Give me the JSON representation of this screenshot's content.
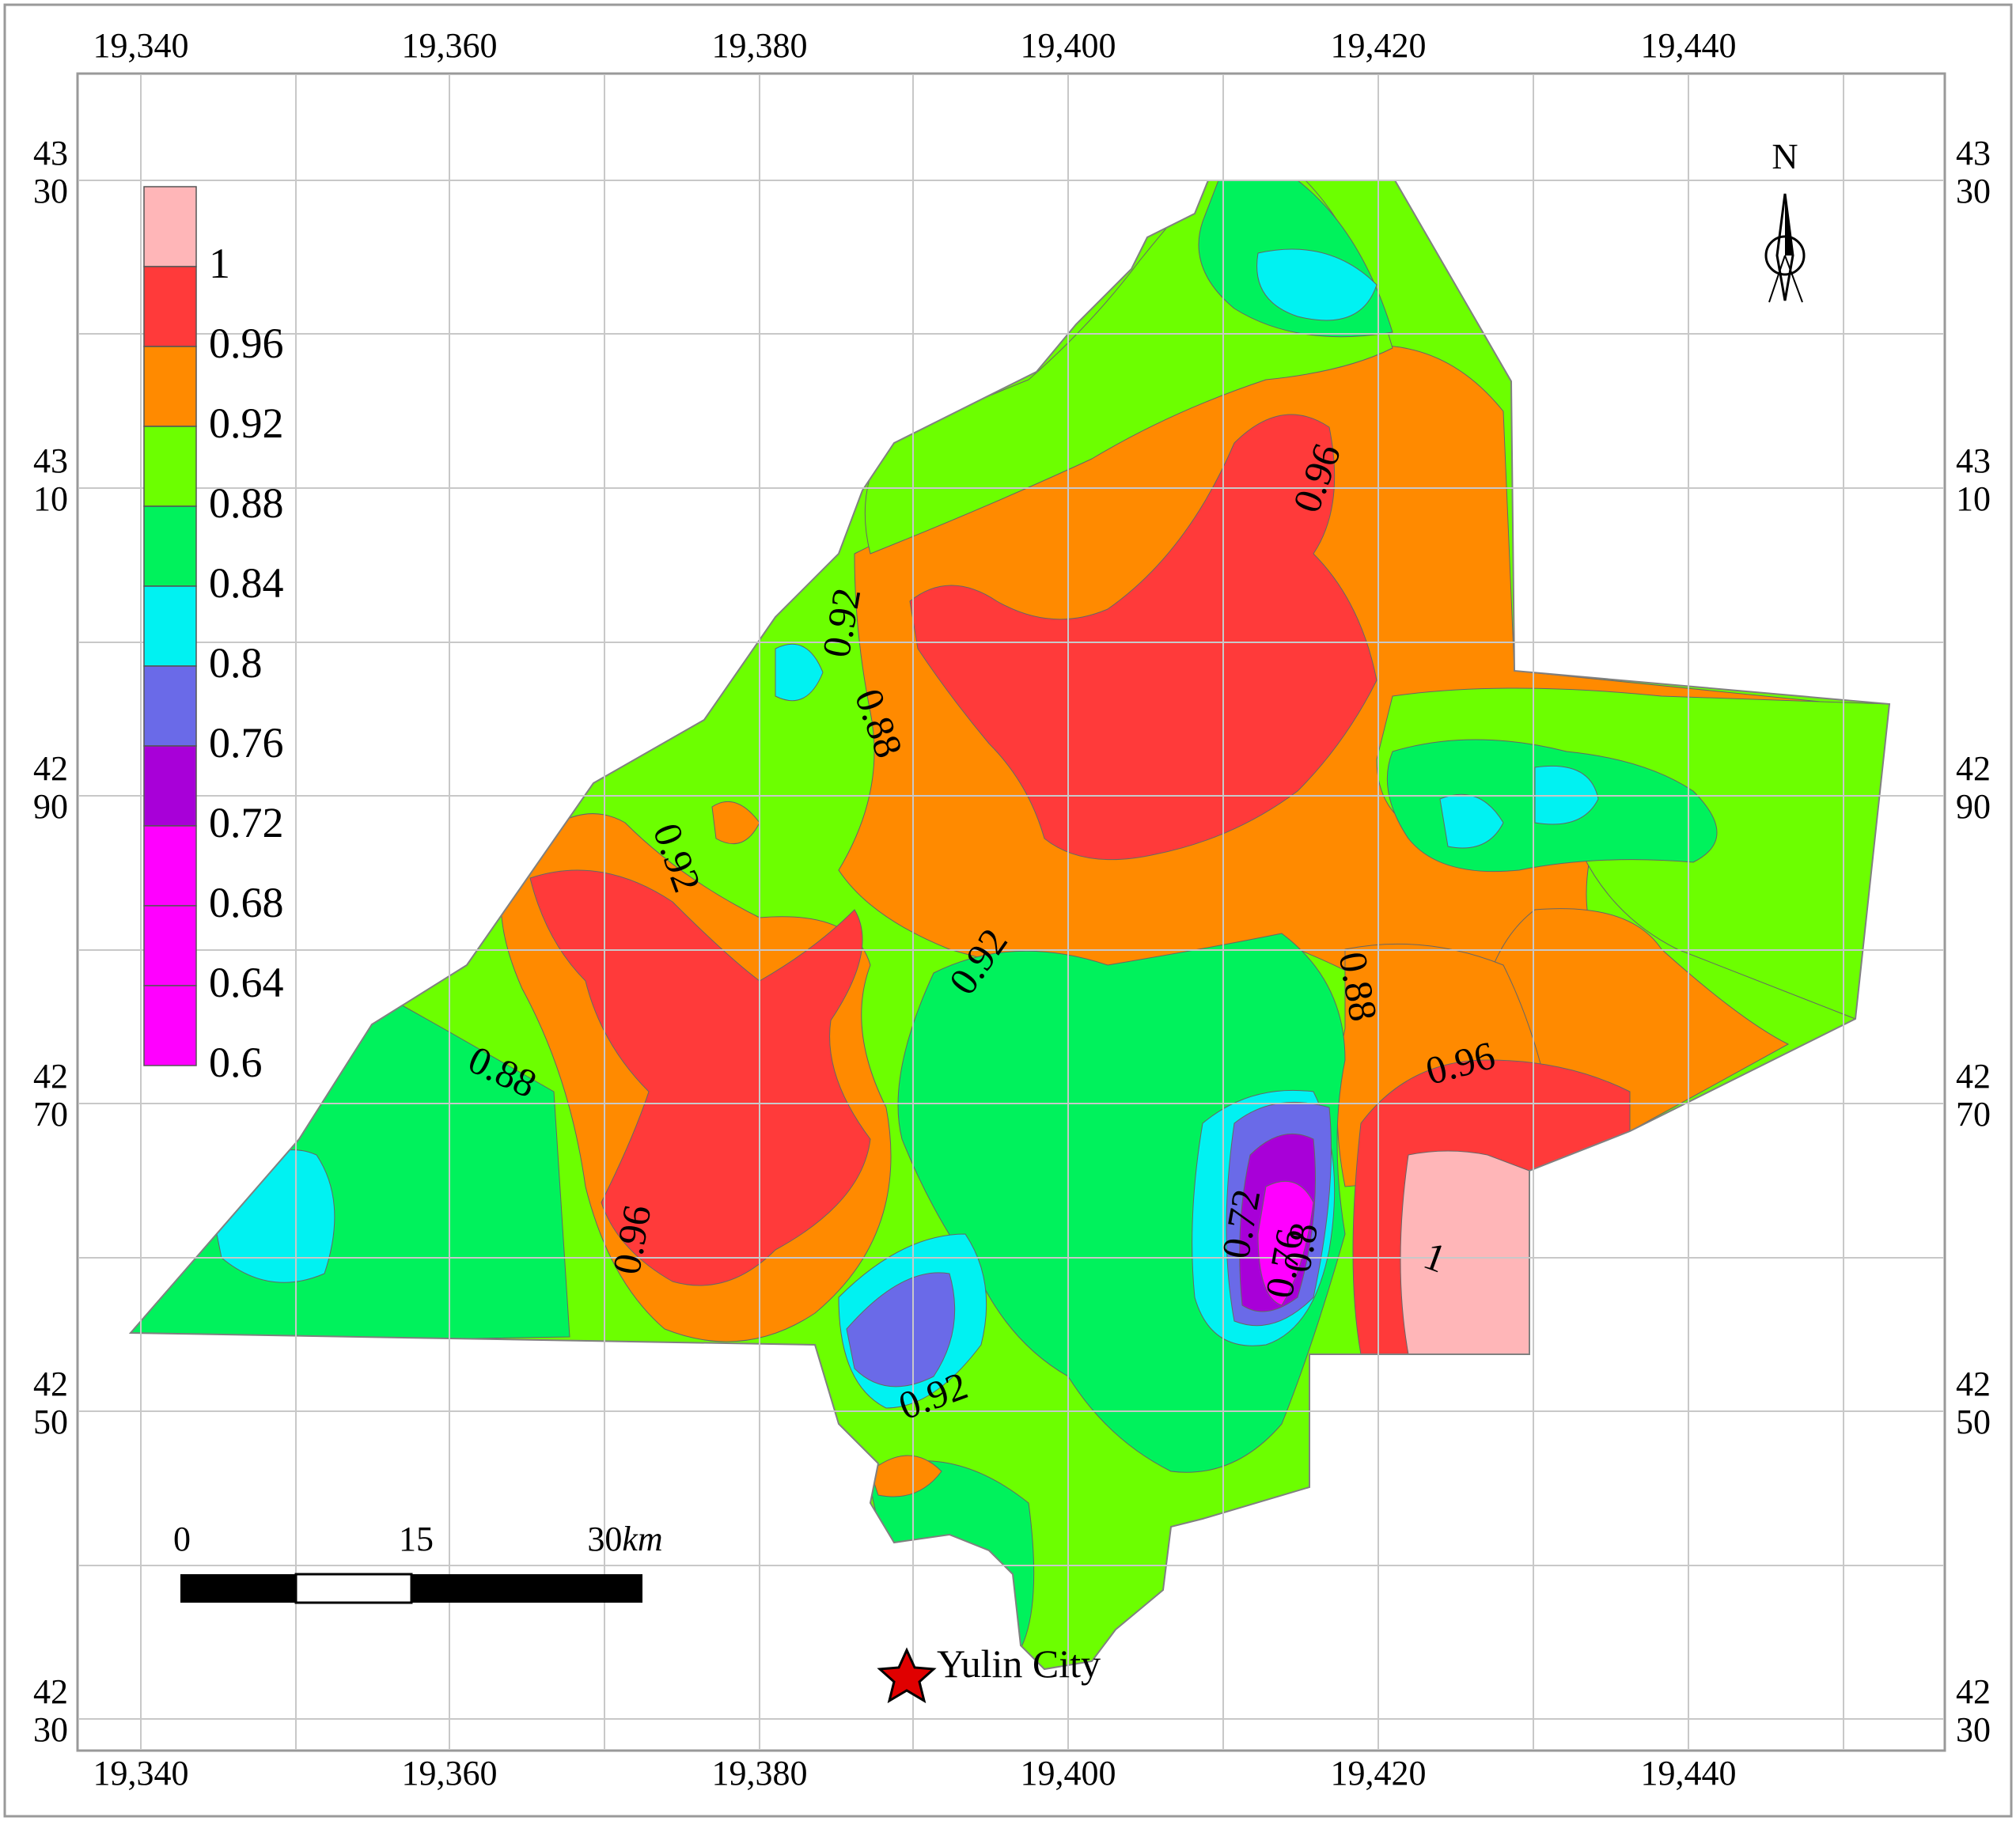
{
  "colors": {
    "c100": "#ffb6b8",
    "c096": "#ff3a3a",
    "c092": "#ff8a00",
    "c088": "#6cff00",
    "c084": "#00f25c",
    "c080": "#00f2f2",
    "c076": "#6a6ae8",
    "c072": "#a800d8",
    "c068": "#ff00ff",
    "c064": "#ff00ff",
    "c060": "#ff00ff",
    "grid": "#c8c8c8",
    "outline": "#808080"
  },
  "axes": {
    "x_ticks_top": [
      "19,340",
      "19,360",
      "19,380",
      "19,400",
      "19,420",
      "19,440"
    ],
    "x_ticks_bottom": [
      "19,340",
      "19,360",
      "19,380",
      "19,400",
      "19,420",
      "19,440"
    ],
    "y_ticks_left": [
      [
        "43",
        "30"
      ],
      [
        "43",
        "10"
      ],
      [
        "42",
        "90"
      ],
      [
        "42",
        "70"
      ],
      [
        "42",
        "50"
      ],
      [
        "42",
        "30"
      ]
    ],
    "y_ticks_right": [
      [
        "43",
        "30"
      ],
      [
        "43",
        "10"
      ],
      [
        "42",
        "90"
      ],
      [
        "42",
        "70"
      ],
      [
        "42",
        "50"
      ],
      [
        "42",
        "30"
      ]
    ]
  },
  "legend": {
    "labels": [
      "1",
      "0.96",
      "0.92",
      "0.88",
      "0.84",
      "0.8",
      "0.76",
      "0.72",
      "0.68",
      "0.64",
      "0.6"
    ]
  },
  "contour_labels": [
    "0.96",
    "0.92",
    "0.88",
    "0.92",
    "0.92",
    "0.88",
    "0.88",
    "0.92",
    "0.88",
    "0.96",
    "0.96",
    "0.72",
    "0.76",
    "0.8",
    "1",
    "0.88"
  ],
  "north_arrow": {
    "label": "N",
    "icon": "north-arrow-icon"
  },
  "scale_bar": {
    "labels": [
      "0",
      "15",
      "30"
    ],
    "unit": "km"
  },
  "place": {
    "label": "Yulin City",
    "icon": "star-icon",
    "color": "#e00000"
  }
}
